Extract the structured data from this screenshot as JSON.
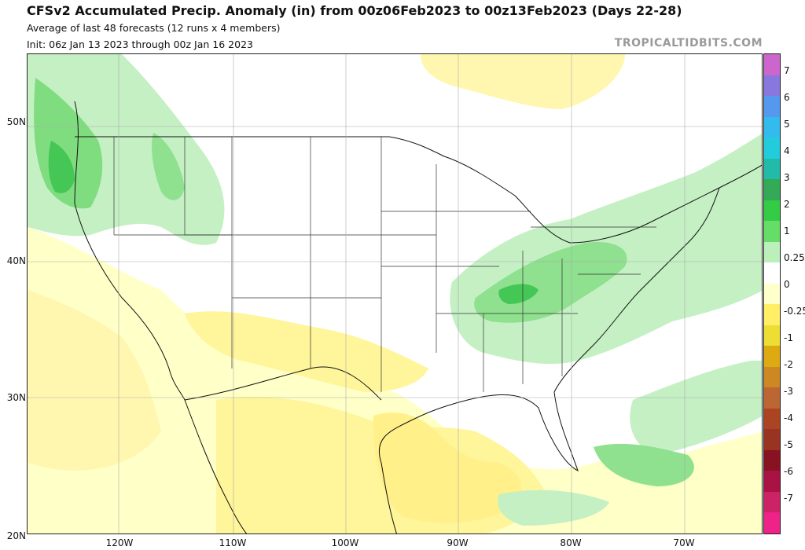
{
  "header": {
    "title": "CFSv2 Accumulated Precip. Anomaly (in) from 00z06Feb2023 to 00z13Feb2023 (Days 22-28)",
    "subtitle1": "Average of last 48 forecasts (12 runs x 4 members)",
    "subtitle2": "Init: 06z Jan 13 2023 through 00z Jan 16 2023",
    "brand": "TROPICALTIDBITS.COM"
  },
  "axes": {
    "lat_labels": [
      "50N",
      "40N",
      "30N",
      "20N"
    ],
    "lon_labels": [
      "120W",
      "110W",
      "100W",
      "90W",
      "80W",
      "70W"
    ]
  },
  "colorbar": {
    "labels": [
      "7",
      "6",
      "5",
      "4",
      "3",
      "2",
      "1",
      "0.25",
      "0",
      "-0.25",
      "-1",
      "-2",
      "-3",
      "-4",
      "-5",
      "-6",
      "-7"
    ],
    "colors": [
      "#cc66cc",
      "#8877dd",
      "#5599ee",
      "#33bbee",
      "#22ccdd",
      "#22bbaa",
      "#33aa55",
      "#33cc44",
      "#66dd66",
      "#bbf0bb",
      "#ffffff",
      "#ffffcc",
      "#ffee66",
      "#eedd33",
      "#ddaa11",
      "#cc8822",
      "#bb6633",
      "#aa4422",
      "#993322",
      "#881122",
      "#aa1144",
      "#cc2266",
      "#ee2288"
    ]
  }
}
